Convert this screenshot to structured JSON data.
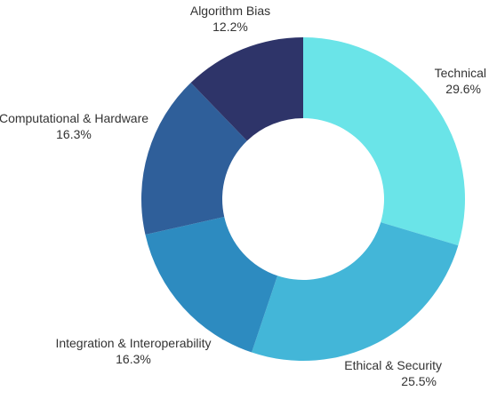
{
  "chart_data": {
    "type": "pie",
    "variant": "donut",
    "labels": [
      "Technical",
      "Ethical & Security",
      "Integration & Interoperability",
      "Computational & Hardware",
      "Algorithm Bias"
    ],
    "values": [
      29.6,
      25.5,
      16.3,
      16.3,
      12.2
    ],
    "value_labels": [
      "29.6%",
      "25.5%",
      "16.3%",
      "16.3%",
      "12.2%"
    ],
    "colors": [
      "#6ae4e8",
      "#43b6d8",
      "#2d8bc0",
      "#2f5f9a",
      "#2e3469"
    ],
    "title": "",
    "legend": "none"
  }
}
